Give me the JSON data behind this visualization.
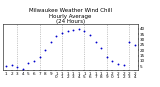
{
  "title": "Milwaukee Weather Wind Chill\nHourly Average\n(24 Hours)",
  "title_fontsize": 4.0,
  "background_color": "#ffffff",
  "dot_color": "#0000cc",
  "grid_color": "#999999",
  "hours": [
    1,
    2,
    3,
    4,
    5,
    6,
    7,
    8,
    9,
    10,
    11,
    12,
    13,
    14,
    15,
    16,
    17,
    18,
    19,
    20,
    21,
    22,
    23,
    24
  ],
  "values": [
    5,
    6,
    4,
    3,
    8,
    10,
    14,
    20,
    28,
    33,
    36,
    38,
    39,
    40,
    38,
    34,
    28,
    22,
    14,
    10,
    7,
    6,
    28,
    25
  ],
  "ylim_min": 2,
  "ylim_max": 44,
  "ytick_values": [
    5,
    10,
    15,
    20,
    25,
    30,
    35,
    40
  ],
  "xtick_positions": [
    1,
    2,
    3,
    4,
    5,
    6,
    7,
    8,
    9,
    10,
    11,
    12,
    13,
    14,
    15,
    16,
    17,
    18,
    19,
    20,
    21,
    22,
    23,
    24
  ],
  "xtick_labels": [
    "1",
    "2",
    "3",
    "4",
    "5",
    "6",
    "7",
    "8",
    "9",
    "1",
    "1",
    "1",
    "1",
    "1",
    "1",
    "1",
    "1",
    "1",
    "1",
    "2",
    "2",
    "2",
    "2",
    "2"
  ],
  "xtick_labels2": [
    "",
    "",
    "",
    "",
    "",
    "",
    "",
    "",
    "",
    "0",
    "1",
    "2",
    "3",
    "4",
    "5",
    "6",
    "7",
    "8",
    "9",
    "0",
    "1",
    "2",
    "3",
    "4"
  ],
  "xtick_fontsize": 3.0,
  "ytick_fontsize": 3.0,
  "vgrid_positions": [
    3,
    7,
    11,
    15,
    19,
    23
  ],
  "marker_size": 1.8,
  "line_color": "#0000cc",
  "line_width": 0.8
}
